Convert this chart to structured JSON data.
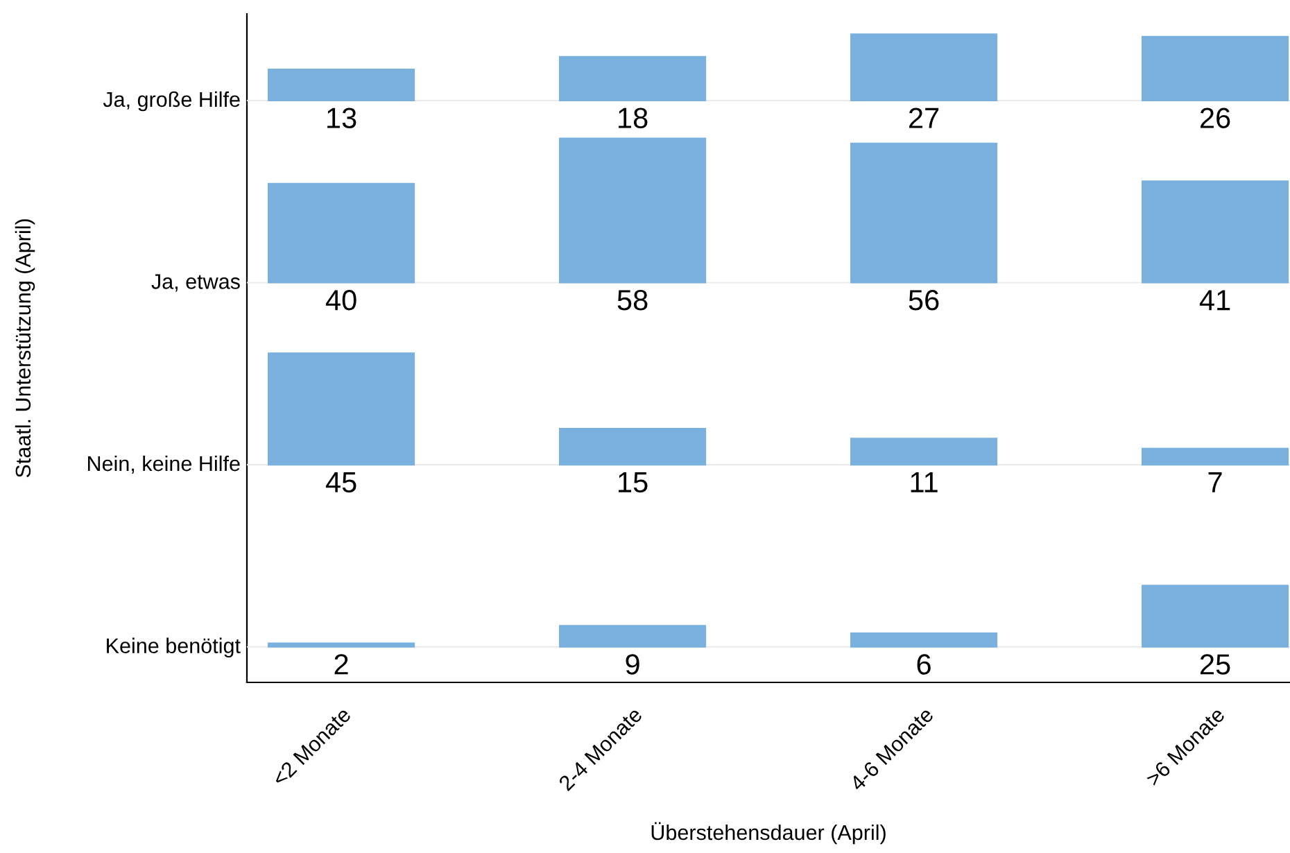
{
  "chart_data": [
    {
      "type": "bar",
      "ylabel": "Ja, große Hilfe",
      "annotations": [
        "Staatl. Unterstützung (April)"
      ],
      "categories": [
        null,
        null,
        null,
        null
      ],
      "values": [
        13,
        18,
        27,
        26
      ],
      "color": "#79b0dd",
      "data_labels": true,
      "tick_labels": false
    },
    {
      "type": "bar",
      "ylabel": "Ja, etwas",
      "categories": [
        null,
        null,
        null,
        null
      ],
      "values": [
        40,
        58,
        56,
        41
      ],
      "color": "#79b0dd",
      "data_labels": true,
      "tick_labels": false
    },
    {
      "type": "bar",
      "ylabel": "Nein, keine Hilfe",
      "categories": [
        null,
        null,
        null,
        null
      ],
      "values": [
        45,
        15,
        11,
        7
      ],
      "color": "#79b0dd",
      "data_labels": true,
      "tick_labels": false
    },
    {
      "type": "bar",
      "ylabel": "Keine benötigt",
      "xlabel": "Überstehensdauer (April)",
      "categories": [
        "<2 Monate",
        "2-4 Monate",
        "4-6 Monate",
        ">6 Monate"
      ],
      "values": [
        2,
        9,
        6,
        25
      ],
      "color": "#79b0dd",
      "data_labels": true,
      "tick_labels": "x"
    }
  ]
}
